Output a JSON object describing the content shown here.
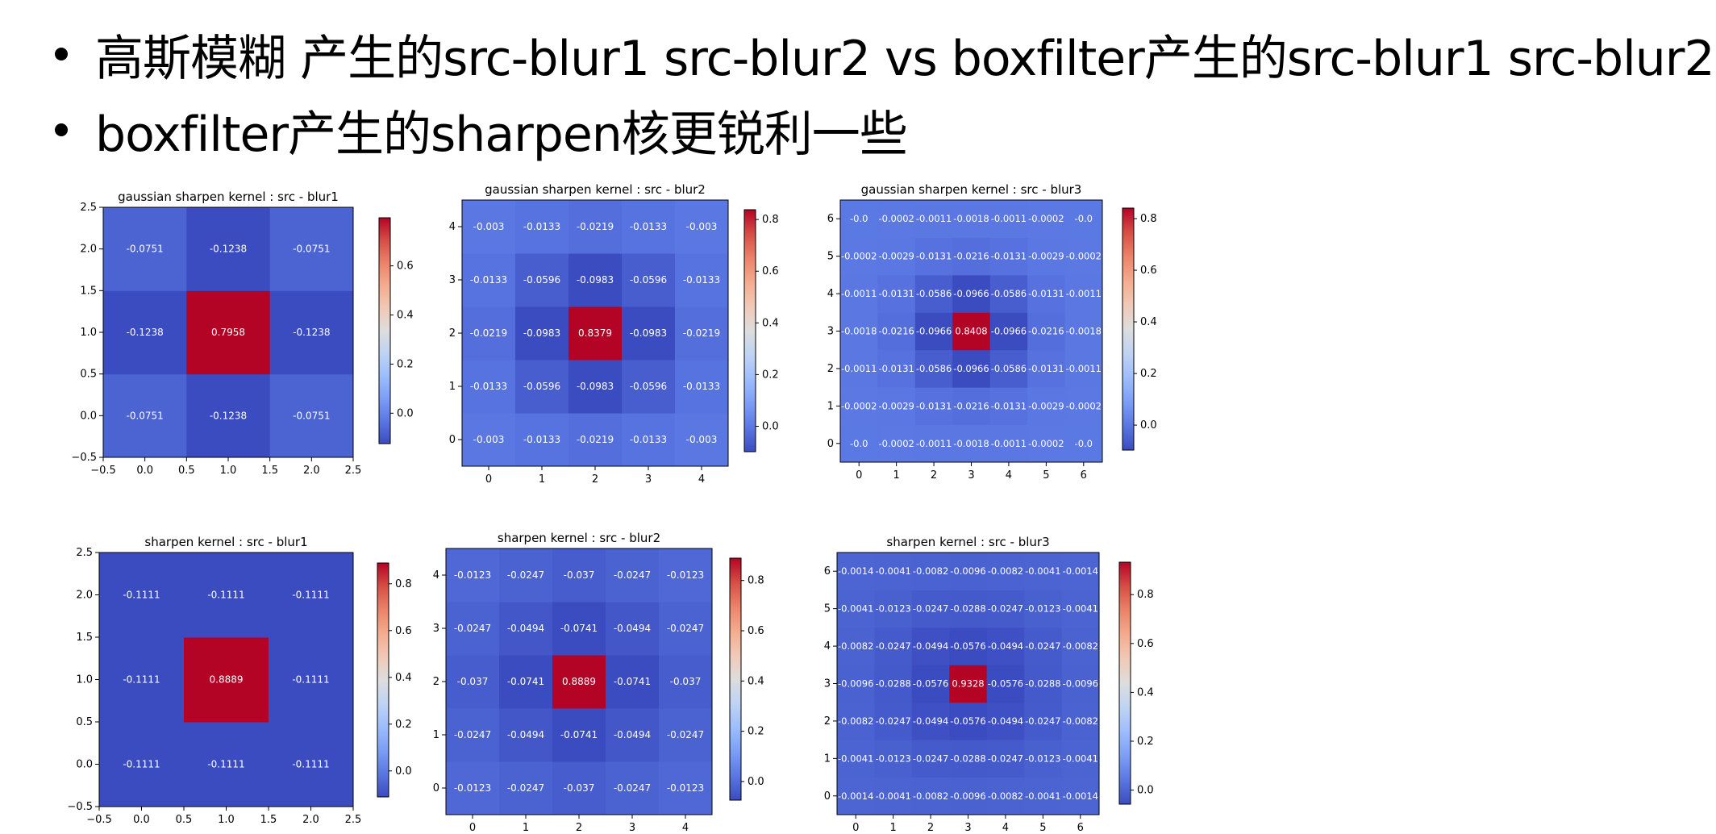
{
  "slide": {
    "bullets": [
      "高斯模糊  产生的src-blur1 src-blur2 vs boxfilter产生的src-blur1 src-blur2",
      "boxfilter产生的sharpen核更锐利一些"
    ]
  },
  "chart_data": [
    {
      "type": "heatmap",
      "title": "gaussian sharpen kernel : src - blur1",
      "colormap": "coolwarm",
      "xlim": [
        -0.5,
        2.5
      ],
      "ylim": [
        -0.5,
        2.5
      ],
      "x_ticks": [
        "−0.5",
        "0.0",
        "0.5",
        "1.0",
        "1.5",
        "2.0",
        "2.5"
      ],
      "y_ticks": [
        "−0.5",
        "0.0",
        "0.5",
        "1.0",
        "1.5",
        "2.0",
        "2.5"
      ],
      "colorbar": {
        "min": -0.1238,
        "max": 0.7958,
        "ticks": [
          "0.0",
          "0.2",
          "0.4",
          "0.6"
        ]
      },
      "values": [
        [
          -0.0751,
          -0.1238,
          -0.0751
        ],
        [
          -0.1238,
          0.7958,
          -0.1238
        ],
        [
          -0.0751,
          -0.1238,
          -0.0751
        ]
      ],
      "labels": [
        [
          "-0.0751",
          "-0.1238",
          "-0.0751"
        ],
        [
          "-0.1238",
          "0.7958",
          "-0.1238"
        ],
        [
          "-0.0751",
          "-0.1238",
          "-0.0751"
        ]
      ]
    },
    {
      "type": "heatmap",
      "title": "gaussian sharpen kernel : src - blur2",
      "colormap": "coolwarm",
      "x_ticks": [
        "0",
        "1",
        "2",
        "3",
        "4"
      ],
      "y_ticks": [
        "0",
        "1",
        "2",
        "3",
        "4"
      ],
      "colorbar": {
        "min": -0.0983,
        "max": 0.8379,
        "ticks": [
          "0.0",
          "0.2",
          "0.4",
          "0.6",
          "0.8"
        ]
      },
      "values": [
        [
          -0.003,
          -0.0133,
          -0.0219,
          -0.0133,
          -0.003
        ],
        [
          -0.0133,
          -0.0596,
          -0.0983,
          -0.0596,
          -0.0133
        ],
        [
          -0.0219,
          -0.0983,
          0.8379,
          -0.0983,
          -0.0219
        ],
        [
          -0.0133,
          -0.0596,
          -0.0983,
          -0.0596,
          -0.0133
        ],
        [
          -0.003,
          -0.0133,
          -0.0219,
          -0.0133,
          -0.003
        ]
      ],
      "labels": [
        [
          "-0.003",
          "-0.0133",
          "-0.0219",
          "-0.0133",
          "-0.003"
        ],
        [
          "-0.0133",
          "-0.0596",
          "-0.0983",
          "-0.0596",
          "-0.0133"
        ],
        [
          "-0.0219",
          "-0.0983",
          "0.8379",
          "-0.0983",
          "-0.0219"
        ],
        [
          "-0.0133",
          "-0.0596",
          "-0.0983",
          "-0.0596",
          "-0.0133"
        ],
        [
          "-0.003",
          "-0.0133",
          "-0.0219",
          "-0.0133",
          "-0.003"
        ]
      ]
    },
    {
      "type": "heatmap",
      "title": "gaussian sharpen kernel : src - blur3",
      "colormap": "coolwarm",
      "x_ticks": [
        "0",
        "1",
        "2",
        "3",
        "4",
        "5",
        "6"
      ],
      "y_ticks": [
        "0",
        "1",
        "2",
        "3",
        "4",
        "5",
        "6"
      ],
      "colorbar": {
        "min": -0.0966,
        "max": 0.8408,
        "ticks": [
          "0.0",
          "0.2",
          "0.4",
          "0.6",
          "0.8"
        ]
      },
      "values": [
        [
          -0.0,
          -0.0002,
          -0.0011,
          -0.0018,
          -0.0011,
          -0.0002,
          -0.0
        ],
        [
          -0.0002,
          -0.0029,
          -0.0131,
          -0.0216,
          -0.0131,
          -0.0029,
          -0.0002
        ],
        [
          -0.0011,
          -0.0131,
          -0.0586,
          -0.0966,
          -0.0586,
          -0.0131,
          -0.0011
        ],
        [
          -0.0018,
          -0.0216,
          -0.0966,
          0.8408,
          -0.0966,
          -0.0216,
          -0.0018
        ],
        [
          -0.0011,
          -0.0131,
          -0.0586,
          -0.0966,
          -0.0586,
          -0.0131,
          -0.0011
        ],
        [
          -0.0002,
          -0.0029,
          -0.0131,
          -0.0216,
          -0.0131,
          -0.0029,
          -0.0002
        ],
        [
          -0.0,
          -0.0002,
          -0.0011,
          -0.0018,
          -0.0011,
          -0.0002,
          -0.0
        ]
      ],
      "labels": [
        [
          "-0.0",
          "-0.0002",
          "-0.0011",
          "-0.0018",
          "-0.0011",
          "-0.0002",
          "-0.0"
        ],
        [
          "-0.0002",
          "-0.0029",
          "-0.0131",
          "-0.0216",
          "-0.0131",
          "-0.0029",
          "-0.0002"
        ],
        [
          "-0.0011",
          "-0.0131",
          "-0.0586",
          "-0.0966",
          "-0.0586",
          "-0.0131",
          "-0.0011"
        ],
        [
          "-0.0018",
          "-0.0216",
          "-0.0966",
          "0.8408",
          "-0.0966",
          "-0.0216",
          "-0.0018"
        ],
        [
          "-0.0011",
          "-0.0131",
          "-0.0586",
          "-0.0966",
          "-0.0586",
          "-0.0131",
          "-0.0011"
        ],
        [
          "-0.0002",
          "-0.0029",
          "-0.0131",
          "-0.0216",
          "-0.0131",
          "-0.0029",
          "-0.0002"
        ],
        [
          "-0.0",
          "-0.0002",
          "-0.0011",
          "-0.0018",
          "-0.0011",
          "-0.0002",
          "-0.0"
        ]
      ]
    },
    {
      "type": "heatmap",
      "title": "sharpen kernel : src - blur1",
      "colormap": "coolwarm",
      "xlim": [
        -0.5,
        2.5
      ],
      "ylim": [
        -0.5,
        2.5
      ],
      "x_ticks": [
        "−0.5",
        "0.0",
        "0.5",
        "1.0",
        "1.5",
        "2.0",
        "2.5"
      ],
      "y_ticks": [
        "−0.5",
        "0.0",
        "0.5",
        "1.0",
        "1.5",
        "2.0",
        "2.5"
      ],
      "colorbar": {
        "min": -0.1111,
        "max": 0.8889,
        "ticks": [
          "0.0",
          "0.2",
          "0.4",
          "0.6",
          "0.8"
        ]
      },
      "values": [
        [
          -0.1111,
          -0.1111,
          -0.1111
        ],
        [
          -0.1111,
          0.8889,
          -0.1111
        ],
        [
          -0.1111,
          -0.1111,
          -0.1111
        ]
      ],
      "labels": [
        [
          "-0.1111",
          "-0.1111",
          "-0.1111"
        ],
        [
          "-0.1111",
          "0.8889",
          "-0.1111"
        ],
        [
          "-0.1111",
          "-0.1111",
          "-0.1111"
        ]
      ]
    },
    {
      "type": "heatmap",
      "title": "sharpen kernel : src - blur2",
      "colormap": "coolwarm",
      "x_ticks": [
        "0",
        "1",
        "2",
        "3",
        "4"
      ],
      "y_ticks": [
        "0",
        "1",
        "2",
        "3",
        "4"
      ],
      "colorbar": {
        "min": -0.0741,
        "max": 0.8889,
        "ticks": [
          "0.0",
          "0.2",
          "0.4",
          "0.6",
          "0.8"
        ]
      },
      "values": [
        [
          -0.0123,
          -0.0247,
          -0.037,
          -0.0247,
          -0.0123
        ],
        [
          -0.0247,
          -0.0494,
          -0.0741,
          -0.0494,
          -0.0247
        ],
        [
          -0.037,
          -0.0741,
          0.8889,
          -0.0741,
          -0.037
        ],
        [
          -0.0247,
          -0.0494,
          -0.0741,
          -0.0494,
          -0.0247
        ],
        [
          -0.0123,
          -0.0247,
          -0.037,
          -0.0247,
          -0.0123
        ]
      ],
      "labels": [
        [
          "-0.0123",
          "-0.0247",
          "-0.037",
          "-0.0247",
          "-0.0123"
        ],
        [
          "-0.0247",
          "-0.0494",
          "-0.0741",
          "-0.0494",
          "-0.0247"
        ],
        [
          "-0.037",
          "-0.0741",
          "0.8889",
          "-0.0741",
          "-0.037"
        ],
        [
          "-0.0247",
          "-0.0494",
          "-0.0741",
          "-0.0494",
          "-0.0247"
        ],
        [
          "-0.0123",
          "-0.0247",
          "-0.037",
          "-0.0247",
          "-0.0123"
        ]
      ]
    },
    {
      "type": "heatmap",
      "title": "sharpen kernel : src - blur3",
      "colormap": "coolwarm",
      "x_ticks": [
        "0",
        "1",
        "2",
        "3",
        "4",
        "5",
        "6"
      ],
      "y_ticks": [
        "0",
        "1",
        "2",
        "3",
        "4",
        "5",
        "6"
      ],
      "colorbar": {
        "min": -0.0576,
        "max": 0.9328,
        "ticks": [
          "0.0",
          "0.2",
          "0.4",
          "0.6",
          "0.8"
        ]
      },
      "values": [
        [
          -0.0014,
          -0.0041,
          -0.0082,
          -0.0096,
          -0.0082,
          -0.0041,
          -0.0014
        ],
        [
          -0.0041,
          -0.0123,
          -0.0247,
          -0.0288,
          -0.0247,
          -0.0123,
          -0.0041
        ],
        [
          -0.0082,
          -0.0247,
          -0.0494,
          -0.0576,
          -0.0494,
          -0.0247,
          -0.0082
        ],
        [
          -0.0096,
          -0.0288,
          -0.0576,
          0.9328,
          -0.0576,
          -0.0288,
          -0.0096
        ],
        [
          -0.0082,
          -0.0247,
          -0.0494,
          -0.0576,
          -0.0494,
          -0.0247,
          -0.0082
        ],
        [
          -0.0041,
          -0.0123,
          -0.0247,
          -0.0288,
          -0.0247,
          -0.0123,
          -0.0041
        ],
        [
          -0.0014,
          -0.0041,
          -0.0082,
          -0.0096,
          -0.0082,
          -0.0041,
          -0.0014
        ]
      ],
      "labels": [
        [
          "-0.0014",
          "-0.0041",
          "-0.0082",
          "-0.0096",
          "-0.0082",
          "-0.0041",
          "-0.0014"
        ],
        [
          "-0.0041",
          "-0.0123",
          "-0.0247",
          "-0.0288",
          "-0.0247",
          "-0.0123",
          "-0.0041"
        ],
        [
          "-0.0082",
          "-0.0247",
          "-0.0494",
          "-0.0576",
          "-0.0494",
          "-0.0247",
          "-0.0082"
        ],
        [
          "-0.0096",
          "-0.0288",
          "-0.0576",
          "0.9328",
          "-0.0576",
          "-0.0288",
          "-0.0096"
        ],
        [
          "-0.0082",
          "-0.0247",
          "-0.0494",
          "-0.0576",
          "-0.0494",
          "-0.0247",
          "-0.0082"
        ],
        [
          "-0.0041",
          "-0.0123",
          "-0.0247",
          "-0.0288",
          "-0.0247",
          "-0.0123",
          "-0.0041"
        ],
        [
          "-0.0014",
          "-0.0041",
          "-0.0082",
          "-0.0096",
          "-0.0082",
          "-0.0041",
          "-0.0014"
        ]
      ]
    }
  ]
}
